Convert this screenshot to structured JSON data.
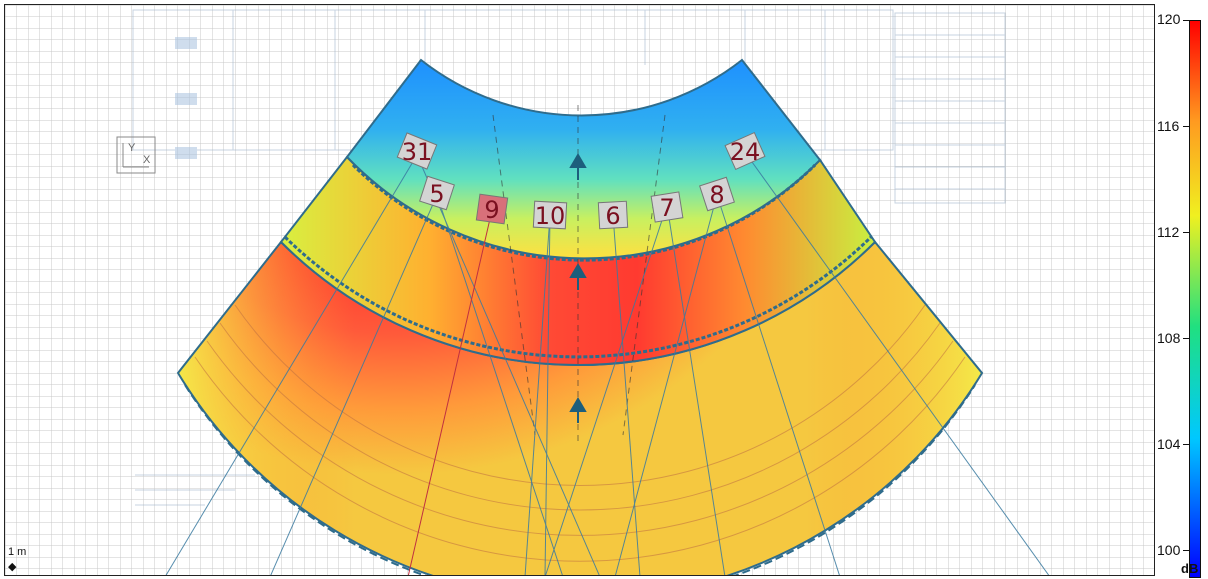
{
  "colorbar": {
    "ticks": [
      "120",
      "116",
      "112",
      "108",
      "104",
      "100"
    ],
    "unit": "dB",
    "max_color": "#ff0000",
    "min_color": "#0000ff"
  },
  "scale": {
    "label": "1 m",
    "arrow_icon": "double-arrow-icon"
  },
  "axis_widget": {
    "y_label": "Y",
    "x_label": "X"
  },
  "speakers": [
    "31",
    "5",
    "9",
    "10",
    "6",
    "7",
    "8",
    "24"
  ],
  "colors": {
    "grid": "#c9c9c9",
    "zone_outline": "#2f6c8c",
    "speaker_label": "#7a1020",
    "speaker_box": "#d4d4d4",
    "highlight_box": "#d8707a"
  }
}
